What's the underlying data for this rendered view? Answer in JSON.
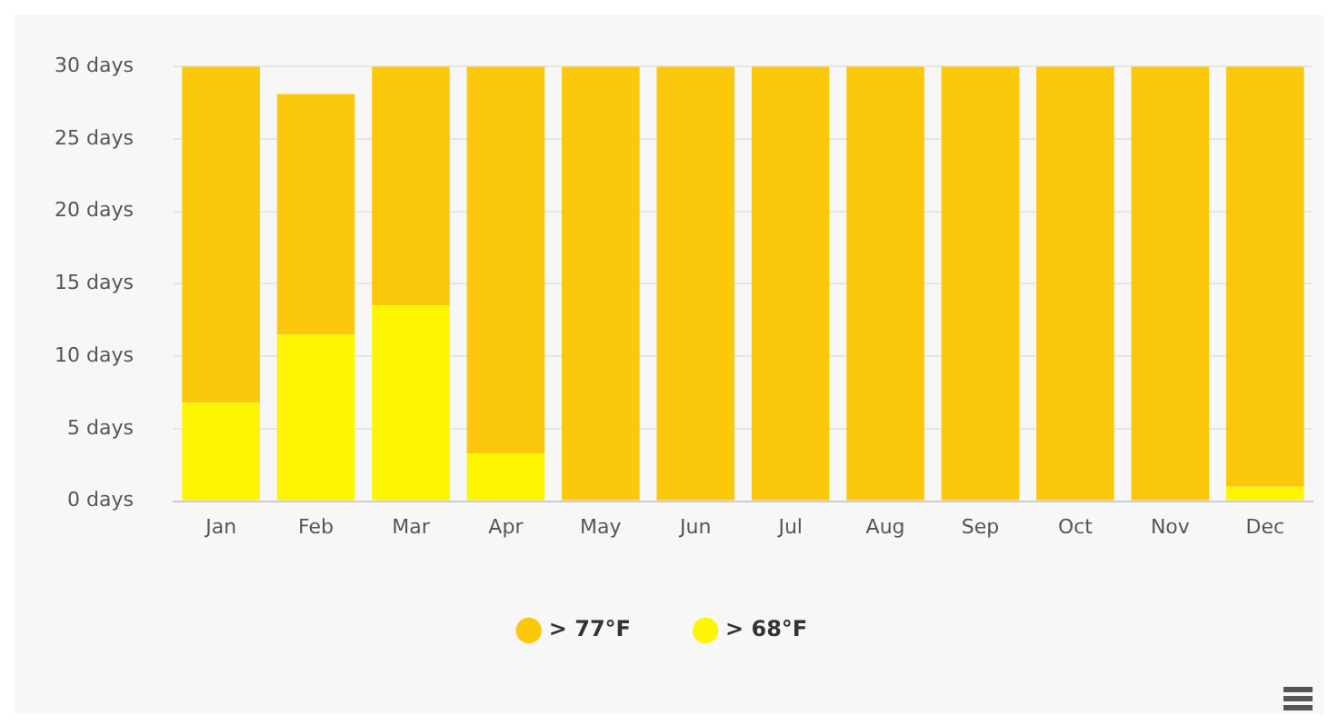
{
  "chart_data": {
    "type": "bar",
    "stacked": true,
    "categories": [
      "Jan",
      "Feb",
      "Mar",
      "Apr",
      "May",
      "Jun",
      "Jul",
      "Aug",
      "Sep",
      "Oct",
      "Nov",
      "Dec"
    ],
    "series": [
      {
        "name": "> 68°F",
        "color": "#fef600",
        "values": [
          6.8,
          11.5,
          13.5,
          3.3,
          null,
          0,
          0,
          0,
          0,
          0,
          0,
          1.0
        ]
      },
      {
        "name": "> 77°F",
        "color": "#fcc80c",
        "values": [
          23.2,
          16.6,
          16.5,
          26.7,
          30,
          30,
          30,
          30,
          30,
          30,
          30,
          29.0
        ]
      }
    ],
    "ylim": [
      0,
      30
    ],
    "yticks": [
      {
        "value": 0,
        "label": "0 days"
      },
      {
        "value": 5,
        "label": "5 days"
      },
      {
        "value": 10,
        "label": "10 days"
      },
      {
        "value": 15,
        "label": "15 days"
      },
      {
        "value": 20,
        "label": "20 days"
      },
      {
        "value": 25,
        "label": "25 days"
      },
      {
        "value": 30,
        "label": "30 days"
      }
    ],
    "grid": "y",
    "legend": "bottom"
  }
}
